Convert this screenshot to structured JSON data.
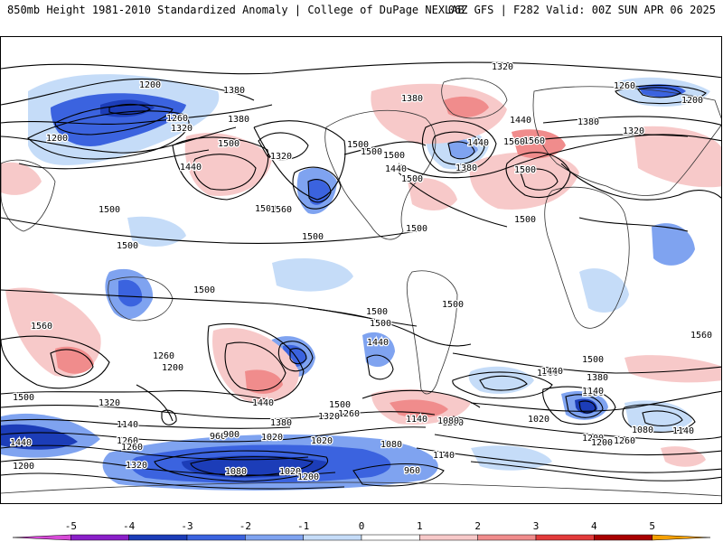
{
  "header": {
    "left_title": "850mb Height 1981-2010 Standardized Anomaly | College of DuPage NEXLAB",
    "right_title": "06Z GFS | F282 Valid: 00Z SUN APR 06 2025"
  },
  "colorbar": {
    "ticks": [
      "-5",
      "-4",
      "-3",
      "-2",
      "-1",
      "0",
      "1",
      "2",
      "3",
      "4",
      "5"
    ],
    "colors": [
      "#d74ad7",
      "#8a1fc9",
      "#1c3db8",
      "#3b63df",
      "#7fa3f0",
      "#c5dcf8",
      "#ffffff",
      "#f7c9c9",
      "#f08c8c",
      "#e23b3b",
      "#a80000",
      "#f5a000"
    ]
  },
  "map": {
    "contour_labels": [
      "1320",
      "1200",
      "1260",
      "1320",
      "1380",
      "1200",
      "1380",
      "1500",
      "1500",
      "1440",
      "1320",
      "1500",
      "1560",
      "1500",
      "1380",
      "1500",
      "1440",
      "1500",
      "1380",
      "1440",
      "1440",
      "1500",
      "1560",
      "1500",
      "1560",
      "1320",
      "1260",
      "1200",
      "1380",
      "1500",
      "1500",
      "1500",
      "1500",
      "1500",
      "1500",
      "1500",
      "1500",
      "1560",
      "1440",
      "1560",
      "1500",
      "1500",
      "1440",
      "1380",
      "1260",
      "1200",
      "1320",
      "1500",
      "1440",
      "1500",
      "1260",
      "1380",
      "1140",
      "1200",
      "1140",
      "1320",
      "1260",
      "1140",
      "1080",
      "960",
      "1020",
      "900",
      "1020",
      "1080",
      "1140",
      "960",
      "1020",
      "1080",
      "1200",
      "1260",
      "1320",
      "1380",
      "1080",
      "1140",
      "1200",
      "1020",
      "1440",
      "1200",
      "1260",
      "1200"
    ]
  }
}
